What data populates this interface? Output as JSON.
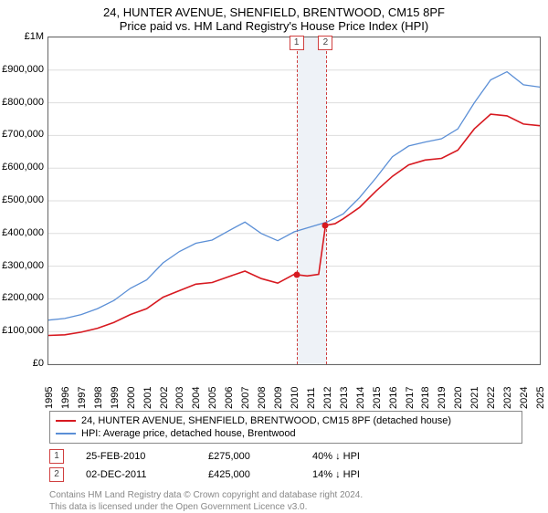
{
  "title": "24, HUNTER AVENUE, SHENFIELD, BRENTWOOD, CM15 8PF",
  "subtitle": "Price paid vs. HM Land Registry's House Price Index (HPI)",
  "chart": {
    "type": "line",
    "background_color": "#ffffff",
    "border_color": "#666666",
    "gridline_color": "#dddddd",
    "y": {
      "min": 0,
      "max": 1000000,
      "step": 100000,
      "labels": [
        "£0",
        "£100,000",
        "£200,000",
        "£300,000",
        "£400,000",
        "£500,000",
        "£600,000",
        "£700,000",
        "£800,000",
        "£900,000",
        "£1M"
      ],
      "label_fontsize": 11
    },
    "x": {
      "min": 1995,
      "max": 2025,
      "step": 1,
      "labels": [
        "1995",
        "1996",
        "1997",
        "1998",
        "1999",
        "2000",
        "2001",
        "2002",
        "2003",
        "2004",
        "2005",
        "2006",
        "2007",
        "2008",
        "2009",
        "2010",
        "2011",
        "2012",
        "2013",
        "2014",
        "2015",
        "2016",
        "2017",
        "2018",
        "2019",
        "2020",
        "2021",
        "2022",
        "2023",
        "2024",
        "2025"
      ],
      "label_fontsize": 11,
      "label_rotation": -90
    },
    "highlight": {
      "from_year": 2010.15,
      "to_year": 2011.92,
      "fill": "#eef2f7",
      "dash_color": "#d04040"
    },
    "markers": [
      {
        "label": "1",
        "year": 2010.15
      },
      {
        "label": "2",
        "year": 2011.92
      }
    ],
    "sale_points": [
      {
        "year": 2010.15,
        "value": 275000,
        "color": "#d71920"
      },
      {
        "year": 2011.92,
        "value": 425000,
        "color": "#d71920"
      }
    ],
    "series": [
      {
        "id": "property",
        "color": "#d71920",
        "width": 1.6,
        "points": [
          [
            1995,
            88000
          ],
          [
            1996,
            90000
          ],
          [
            1997,
            98000
          ],
          [
            1998,
            110000
          ],
          [
            1999,
            128000
          ],
          [
            2000,
            152000
          ],
          [
            2001,
            170000
          ],
          [
            2002,
            205000
          ],
          [
            2003,
            225000
          ],
          [
            2004,
            245000
          ],
          [
            2005,
            250000
          ],
          [
            2006,
            268000
          ],
          [
            2007,
            285000
          ],
          [
            2008,
            262000
          ],
          [
            2009,
            248000
          ],
          [
            2010,
            275000
          ],
          [
            2010.8,
            270000
          ],
          [
            2011.5,
            275000
          ],
          [
            2011.92,
            425000
          ],
          [
            2012.5,
            430000
          ],
          [
            2013,
            445000
          ],
          [
            2014,
            480000
          ],
          [
            2015,
            530000
          ],
          [
            2016,
            575000
          ],
          [
            2017,
            610000
          ],
          [
            2018,
            625000
          ],
          [
            2019,
            630000
          ],
          [
            2020,
            655000
          ],
          [
            2021,
            720000
          ],
          [
            2022,
            765000
          ],
          [
            2023,
            760000
          ],
          [
            2024,
            735000
          ],
          [
            2025,
            730000
          ]
        ]
      },
      {
        "id": "hpi",
        "color": "#5b8fd6",
        "width": 1.3,
        "points": [
          [
            1995,
            135000
          ],
          [
            1996,
            140000
          ],
          [
            1997,
            152000
          ],
          [
            1998,
            170000
          ],
          [
            1999,
            195000
          ],
          [
            2000,
            232000
          ],
          [
            2001,
            258000
          ],
          [
            2002,
            310000
          ],
          [
            2003,
            345000
          ],
          [
            2004,
            370000
          ],
          [
            2005,
            380000
          ],
          [
            2006,
            408000
          ],
          [
            2007,
            435000
          ],
          [
            2008,
            400000
          ],
          [
            2009,
            378000
          ],
          [
            2010,
            405000
          ],
          [
            2011,
            420000
          ],
          [
            2012,
            435000
          ],
          [
            2013,
            460000
          ],
          [
            2014,
            510000
          ],
          [
            2015,
            570000
          ],
          [
            2016,
            635000
          ],
          [
            2017,
            668000
          ],
          [
            2018,
            680000
          ],
          [
            2019,
            690000
          ],
          [
            2020,
            720000
          ],
          [
            2021,
            800000
          ],
          [
            2022,
            870000
          ],
          [
            2023,
            895000
          ],
          [
            2024,
            855000
          ],
          [
            2025,
            848000
          ]
        ]
      }
    ]
  },
  "legend": {
    "items": [
      {
        "color": "#d71920",
        "label": "24, HUNTER AVENUE, SHENFIELD, BRENTWOOD, CM15 8PF (detached house)"
      },
      {
        "color": "#5b8fd6",
        "label": "HPI: Average price, detached house, Brentwood"
      }
    ]
  },
  "sales": [
    {
      "badge": "1",
      "date": "25-FEB-2010",
      "price": "£275,000",
      "delta": "40% ↓ HPI"
    },
    {
      "badge": "2",
      "date": "02-DEC-2011",
      "price": "£425,000",
      "delta": "14% ↓ HPI"
    }
  ],
  "copyright_line1": "Contains HM Land Registry data © Crown copyright and database right 2024.",
  "copyright_line2": "This data is licensed under the Open Government Licence v3.0."
}
